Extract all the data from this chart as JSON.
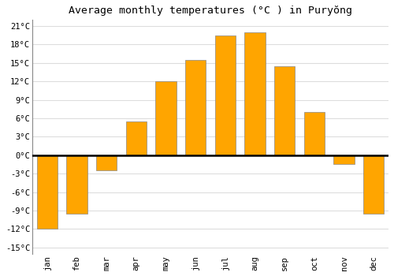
{
  "title": "Average monthly temperatures (°C ) in Puryŏng",
  "months": [
    "Jan",
    "Feb",
    "Mar",
    "Apr",
    "May",
    "Jun",
    "Jul",
    "Aug",
    "Sep",
    "Oct",
    "Nov",
    "Dec"
  ],
  "values": [
    -12,
    -9.5,
    -2.5,
    5.5,
    12,
    15.5,
    19.5,
    20,
    14.5,
    7,
    -1.5,
    -9.5
  ],
  "bar_color": "#FFA500",
  "bar_edge_color": "#888888",
  "background_color": "#FFFFFF",
  "grid_color": "#DDDDDD",
  "yticks": [
    -15,
    -12,
    -9,
    -6,
    -3,
    0,
    3,
    6,
    9,
    12,
    15,
    18,
    21
  ],
  "ylim": [
    -16,
    22
  ],
  "title_fontsize": 9.5
}
